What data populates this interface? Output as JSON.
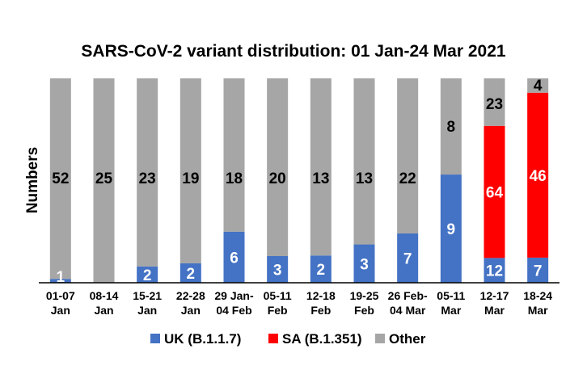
{
  "chart_data": {
    "type": "bar",
    "stacked": true,
    "title": "SARS-CoV-2 variant distribution: 01 Jan-24 Mar 2021",
    "ylabel": "Numbers",
    "xlabel": "",
    "categories": [
      [
        "01-07",
        "Jan"
      ],
      [
        "08-14",
        "Jan"
      ],
      [
        "15-21",
        "Jan"
      ],
      [
        "22-28",
        "Jan"
      ],
      [
        "29 Jan-",
        "04 Feb"
      ],
      [
        "05-11",
        "Feb"
      ],
      [
        "12-18",
        "Feb"
      ],
      [
        "19-25",
        "Feb"
      ],
      [
        "26 Feb-",
        "04 Mar"
      ],
      [
        "05-11",
        "Mar"
      ],
      [
        "12-17",
        "Mar"
      ],
      [
        "18-24",
        "Mar"
      ]
    ],
    "series": [
      {
        "name": "UK (B.1.1.7)",
        "color": "#4472C4",
        "values": [
          1,
          0,
          2,
          2,
          6,
          3,
          2,
          3,
          7,
          9,
          12,
          7
        ],
        "labels": [
          "1",
          "",
          "2",
          "2",
          "6",
          "3",
          "2",
          "3",
          "7",
          "9",
          "12",
          "7"
        ]
      },
      {
        "name": "SA (B.1.351)",
        "color": "#FF0000",
        "values": [
          0,
          0,
          0,
          0,
          0,
          0,
          0,
          0,
          0,
          0,
          64,
          46
        ],
        "labels": [
          "",
          "",
          "",
          "",
          "",
          "",
          "",
          "",
          "",
          "",
          "64",
          "46"
        ]
      },
      {
        "name": "Other",
        "color": "#A6A6A6",
        "values": [
          52,
          25,
          23,
          19,
          18,
          20,
          13,
          13,
          22,
          8,
          23,
          4
        ],
        "labels": [
          "52",
          "25",
          "23",
          "19",
          "18",
          "20",
          "13",
          "13",
          "22",
          "8",
          "23",
          "4"
        ]
      }
    ],
    "percent_stacked": true,
    "ylim": [
      0,
      100
    ],
    "grid": false,
    "legend_position": "bottom"
  }
}
